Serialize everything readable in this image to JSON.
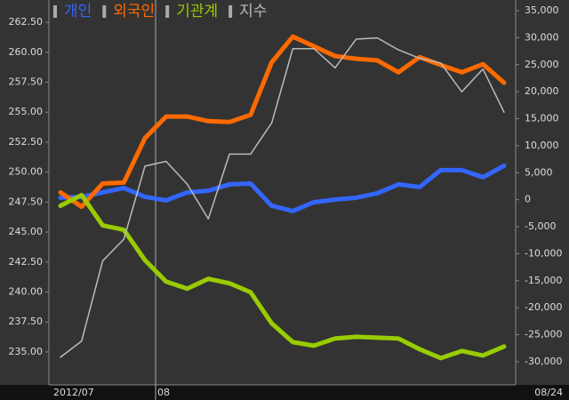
{
  "chart_data": {
    "type": "line",
    "x_labels": [
      "2012/07",
      "08",
      "08/24"
    ],
    "series": [
      {
        "name": "개인",
        "color": "#3366ff",
        "axis": "y2",
        "values": [
          360,
          530,
          1350,
          2180,
          530,
          -130,
          1350,
          1680,
          2840,
          3000,
          -1120,
          -2110,
          -460,
          30,
          360,
          1190,
          2840,
          2340,
          5480,
          5480,
          4160,
          6300
        ]
      },
      {
        "name": "외국인",
        "color": "#ff6a00",
        "axis": "y2",
        "values": [
          1350,
          -1290,
          3000,
          3170,
          11400,
          15400,
          15400,
          14550,
          14390,
          15700,
          25440,
          30200,
          28400,
          26600,
          26100,
          25800,
          23600,
          26400,
          24950,
          23600,
          25100,
          21650
        ]
      },
      {
        "name": "기관계",
        "color": "#99cc00",
        "axis": "y2",
        "values": [
          -1120,
          860,
          -4750,
          -5580,
          -11190,
          -15150,
          -16470,
          -14650,
          -15480,
          -17130,
          -22900,
          -26370,
          -27030,
          -25700,
          -25380,
          -25540,
          -25700,
          -27680,
          -29330,
          -28010,
          -28840,
          -27190
        ]
      },
      {
        "name": "지수",
        "color": "#bbbbbb",
        "axis": "y",
        "values": [
          234.56,
          235.9,
          242.6,
          244.4,
          250.5,
          250.9,
          249.0,
          246.1,
          251.5,
          251.5,
          254.1,
          260.3,
          260.3,
          258.7,
          261.1,
          261.2,
          260.2,
          259.5,
          259.1,
          256.7,
          258.6,
          255.0
        ]
      }
    ],
    "ylim": [
      232.25,
      264.36
    ],
    "yticks": [
      {
        "value": 262.5,
        "label": "262.50"
      },
      {
        "value": 260,
        "label": "260.00"
      },
      {
        "value": 257.5,
        "label": "257.50"
      },
      {
        "value": 255,
        "label": "255.00"
      },
      {
        "value": 252.5,
        "label": "252.50"
      },
      {
        "value": 250,
        "label": "250.00"
      },
      {
        "value": 247.5,
        "label": "247.50"
      },
      {
        "value": 245,
        "label": "245.00"
      },
      {
        "value": 242.5,
        "label": "242.50"
      },
      {
        "value": 240,
        "label": "240.00"
      },
      {
        "value": 237.5,
        "label": "237.50"
      },
      {
        "value": 235,
        "label": "235.00"
      }
    ],
    "y2lim": [
      -34290,
      36980
    ],
    "y2ticks": [
      {
        "value": 35000,
        "label": "35,000"
      },
      {
        "value": 30000,
        "label": "30,000"
      },
      {
        "value": 25000,
        "label": "25,000"
      },
      {
        "value": 20000,
        "label": "20,000"
      },
      {
        "value": 15000,
        "label": "15,000"
      },
      {
        "value": 10000,
        "label": "10,000"
      },
      {
        "value": 5000,
        "label": "5,000"
      },
      0,
      {
        "value": -5000,
        "label": "-5,000"
      },
      {
        "value": -10000,
        "label": "-10,000"
      },
      {
        "value": -15000,
        "label": "-15,000"
      },
      {
        "value": -20000,
        "label": "-20,000"
      },
      {
        "value": -25000,
        "label": "-25,000"
      },
      {
        "value": -30000,
        "label": "-30,000"
      }
    ]
  }
}
